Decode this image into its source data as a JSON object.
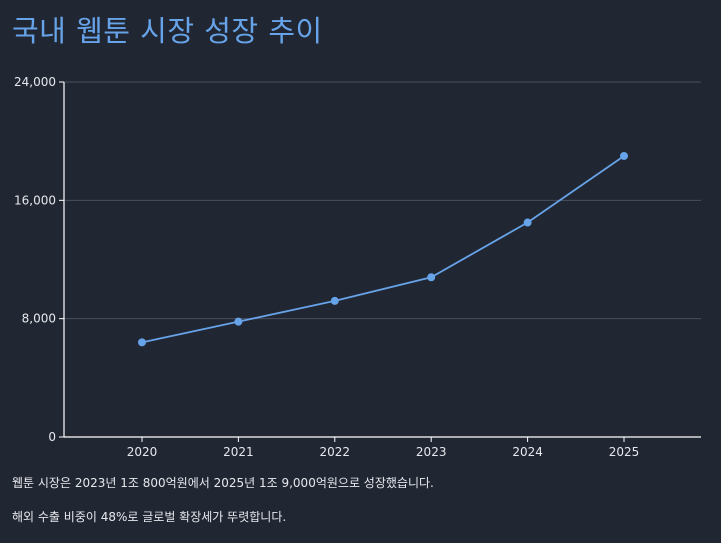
{
  "chart_data": {
    "type": "line",
    "title": "국내 웹툰 시장 성장 추이",
    "xlabel": "",
    "ylabel": "",
    "x": [
      "2020",
      "2021",
      "2022",
      "2023",
      "2024",
      "2025"
    ],
    "series": [
      {
        "values": [
          6400,
          7800,
          9200,
          10800,
          14500,
          19000
        ]
      }
    ],
    "ylim": [
      0,
      24000
    ],
    "yticks": [
      0,
      8000,
      16000,
      24000
    ],
    "ytick_labels": [
      "0",
      "8,000",
      "16,000",
      "24,000"
    ],
    "grid": true,
    "legend": "none",
    "colors": {
      "line": "#66a3e8",
      "background": "#212633",
      "grid": "#4a5060",
      "axis": "#ffffff",
      "text": "#e6e8ec"
    }
  },
  "notes": [
    "웹툰 시장은 2023년 1조 800억원에서 2025년 1조 9,000억원으로 성장했습니다.",
    "해외 수출 비중이 48%로 글로벌 확장세가 뚜렷합니다."
  ]
}
